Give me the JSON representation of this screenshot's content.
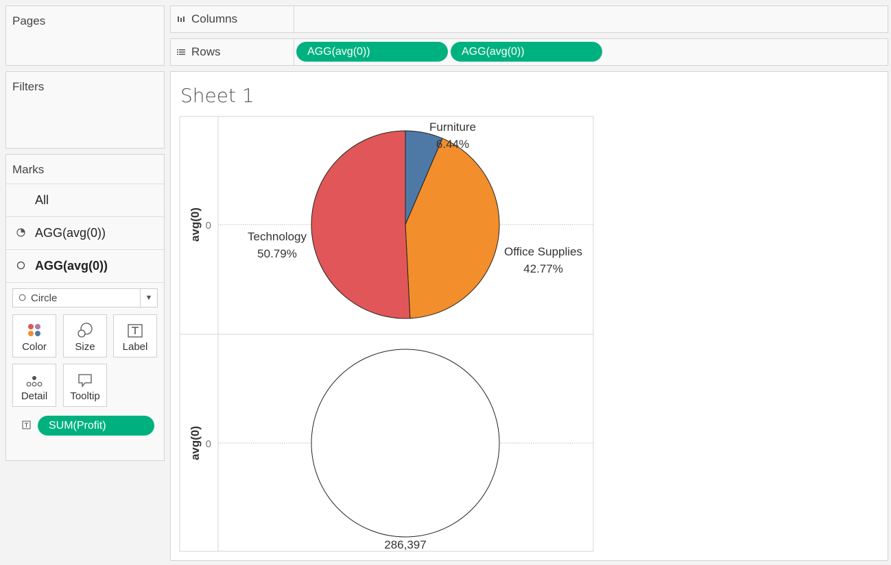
{
  "left": {
    "pages_title": "Pages",
    "filters_title": "Filters",
    "marks": {
      "title": "Marks",
      "rows": [
        "All",
        "AGG(avg(0))",
        "AGG(avg(0))"
      ],
      "mark_type": "Circle",
      "buttons": [
        "Color",
        "Size",
        "Label",
        "Detail",
        "Tooltip"
      ],
      "field_pill": "SUM(Profit)"
    }
  },
  "shelves": {
    "columns_label": "Columns",
    "rows_label": "Rows",
    "rows_pills": [
      "AGG(avg(0))",
      "AGG(avg(0))"
    ]
  },
  "sheet": {
    "title": "Sheet 1"
  },
  "colors": {
    "pill": "#00b180",
    "furniture": "#4e79a7",
    "office_supplies": "#f28e2b",
    "technology": "#e15759"
  },
  "chart_data": [
    {
      "type": "pie",
      "ylabel": "avg(0)",
      "y_tick": "0",
      "slices": [
        {
          "label": "Furniture",
          "value_pct": 6.44,
          "label_text": "6.44%",
          "color": "#4e79a7"
        },
        {
          "label": "Office Supplies",
          "value_pct": 42.77,
          "label_text": "42.77%",
          "color": "#f28e2b"
        },
        {
          "label": "Technology",
          "value_pct": 50.79,
          "label_text": "50.79%",
          "color": "#e15759"
        }
      ]
    },
    {
      "type": "pie",
      "ylabel": "avg(0)",
      "y_tick": "0",
      "slices": [
        {
          "label": "SUM(Profit)",
          "value_pct": 100,
          "label_text": "286,397",
          "color": "#ffffff"
        }
      ]
    }
  ]
}
